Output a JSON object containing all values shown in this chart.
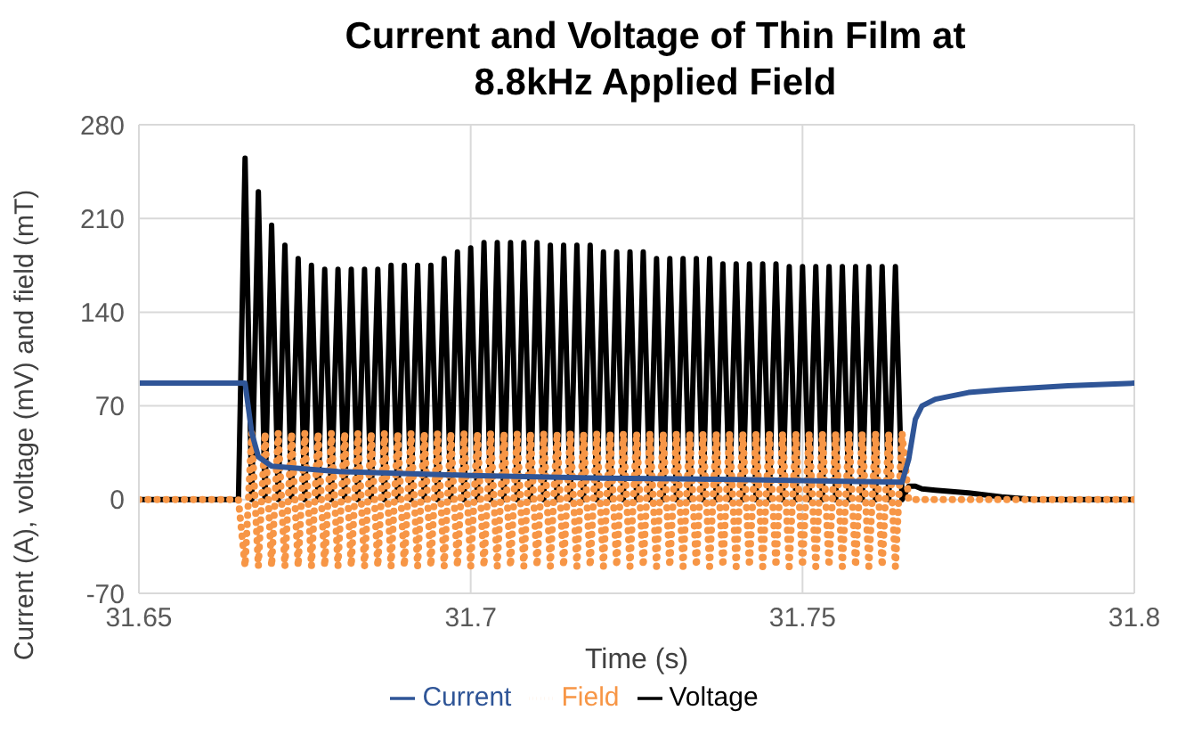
{
  "chart_data": {
    "type": "line",
    "title": "Current and Voltage of Thin Film at 8.8kHz Applied Field",
    "xlabel": "Time (s)",
    "ylabel": "Current (A), voltage (mV) and field (mT)",
    "x": [
      31.65,
      31.655,
      31.66,
      31.665,
      31.666,
      31.667,
      31.668,
      31.669,
      31.67,
      31.671,
      31.672,
      31.673,
      31.674,
      31.675,
      31.676,
      31.677,
      31.678,
      31.679,
      31.68,
      31.681,
      31.682,
      31.683,
      31.684,
      31.685,
      31.686,
      31.687,
      31.688,
      31.689,
      31.69,
      31.691,
      31.692,
      31.693,
      31.694,
      31.695,
      31.696,
      31.697,
      31.698,
      31.699,
      31.7,
      31.701,
      31.702,
      31.703,
      31.704,
      31.705,
      31.706,
      31.707,
      31.708,
      31.709,
      31.71,
      31.711,
      31.712,
      31.713,
      31.714,
      31.715,
      31.716,
      31.717,
      31.718,
      31.719,
      31.72,
      31.721,
      31.722,
      31.723,
      31.724,
      31.725,
      31.726,
      31.727,
      31.728,
      31.729,
      31.73,
      31.731,
      31.732,
      31.733,
      31.734,
      31.735,
      31.736,
      31.737,
      31.738,
      31.739,
      31.74,
      31.741,
      31.742,
      31.743,
      31.744,
      31.745,
      31.746,
      31.747,
      31.748,
      31.749,
      31.75,
      31.751,
      31.752,
      31.753,
      31.754,
      31.755,
      31.756,
      31.757,
      31.758,
      31.759,
      31.76,
      31.761,
      31.762,
      31.763,
      31.764,
      31.765,
      31.766,
      31.767,
      31.768,
      31.77,
      31.775,
      31.78,
      31.785,
      31.79,
      31.795,
      31.8
    ],
    "series": [
      {
        "name": "Voltage",
        "color": "#000000",
        "line_style": "solid",
        "values": [
          0,
          0,
          0,
          0,
          255,
          0,
          230,
          0,
          205,
          0,
          190,
          0,
          180,
          0,
          175,
          0,
          172,
          0,
          172,
          0,
          172,
          0,
          172,
          0,
          172,
          0,
          175,
          0,
          175,
          0,
          175,
          0,
          175,
          0,
          180,
          0,
          185,
          0,
          188,
          0,
          192,
          0,
          192,
          0,
          192,
          0,
          192,
          0,
          192,
          0,
          190,
          0,
          190,
          0,
          190,
          0,
          190,
          0,
          185,
          0,
          185,
          0,
          185,
          0,
          185,
          0,
          180,
          0,
          180,
          0,
          180,
          0,
          180,
          0,
          180,
          0,
          176,
          0,
          176,
          0,
          176,
          0,
          176,
          0,
          176,
          0,
          174,
          0,
          174,
          0,
          174,
          0,
          174,
          0,
          174,
          0,
          174,
          0,
          174,
          0,
          174,
          0,
          174,
          0,
          10,
          10,
          8,
          7,
          5,
          2,
          0,
          0,
          0,
          0
        ]
      },
      {
        "name": "Field",
        "color": "#f79646",
        "line_style": "dotted",
        "values": [
          0,
          0,
          0,
          0,
          -50,
          50,
          -50,
          50,
          -50,
          50,
          -50,
          50,
          -50,
          50,
          -50,
          50,
          -50,
          50,
          -50,
          50,
          -50,
          50,
          -50,
          50,
          -50,
          50,
          -50,
          50,
          -50,
          50,
          -50,
          50,
          -50,
          50,
          -50,
          50,
          -50,
          50,
          -50,
          50,
          -50,
          50,
          -50,
          50,
          -50,
          50,
          -50,
          50,
          -50,
          50,
          -50,
          50,
          -50,
          50,
          -50,
          50,
          -50,
          50,
          -50,
          50,
          -50,
          50,
          -50,
          50,
          -50,
          50,
          -50,
          50,
          -50,
          50,
          -50,
          50,
          -50,
          50,
          -50,
          50,
          -50,
          50,
          -50,
          50,
          -50,
          50,
          -50,
          50,
          -50,
          50,
          -50,
          50,
          -50,
          50,
          -50,
          50,
          -50,
          50,
          -50,
          50,
          -50,
          50,
          -50,
          50,
          -50,
          50,
          -50,
          50,
          0,
          0,
          0,
          0,
          0,
          0,
          0,
          0,
          0,
          0
        ]
      },
      {
        "name": "Current",
        "color": "#2f5597",
        "line_style": "solid",
        "x": [
          31.65,
          31.666,
          31.667,
          31.668,
          31.67,
          31.68,
          31.7,
          31.72,
          31.74,
          31.765,
          31.766,
          31.767,
          31.768,
          31.77,
          31.775,
          31.78,
          31.79,
          31.8
        ],
        "values": [
          87,
          87,
          50,
          32,
          25,
          21,
          18,
          16,
          15,
          13,
          30,
          60,
          70,
          75,
          80,
          82,
          85,
          87
        ]
      }
    ],
    "xlim": [
      31.65,
      31.8
    ],
    "xticks": [
      31.65,
      31.7,
      31.75,
      31.8
    ],
    "ylim": [
      -70,
      280
    ],
    "yticks": [
      -70,
      0,
      70,
      140,
      210,
      280
    ],
    "grid": true,
    "legend": "bottom"
  }
}
